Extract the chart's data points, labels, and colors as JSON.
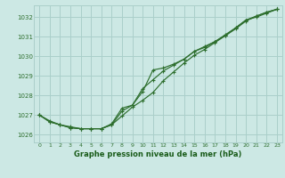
{
  "title": "Graphe pression niveau de la mer (hPa)",
  "bg_color": "#cce8e4",
  "grid_color": "#aacfca",
  "line_color": "#2d6e2d",
  "text_color": "#2d6e2d",
  "xlabel_color": "#1a5c1a",
  "ylim": [
    1025.6,
    1032.6
  ],
  "xlim": [
    -0.5,
    23.5
  ],
  "yticks": [
    1026,
    1027,
    1028,
    1029,
    1030,
    1031,
    1032
  ],
  "xticks": [
    0,
    1,
    2,
    3,
    4,
    5,
    6,
    7,
    8,
    9,
    10,
    11,
    12,
    13,
    14,
    15,
    16,
    17,
    18,
    19,
    20,
    21,
    22,
    23
  ],
  "series1": {
    "x": [
      0,
      1,
      2,
      3,
      4,
      5,
      6,
      7,
      8,
      9,
      10,
      11,
      12,
      13,
      14,
      15,
      16,
      17,
      18,
      19,
      20,
      21,
      22,
      23
    ],
    "y": [
      1027.0,
      1026.7,
      1026.5,
      1026.4,
      1026.3,
      1026.3,
      1026.3,
      1026.5,
      1027.2,
      1027.5,
      1028.2,
      1029.3,
      1029.4,
      1029.6,
      1029.85,
      1030.25,
      1030.5,
      1030.75,
      1031.1,
      1031.45,
      1031.85,
      1032.0,
      1032.2,
      1032.4
    ]
  },
  "series2": {
    "x": [
      0,
      1,
      2,
      3,
      4,
      5,
      6,
      7,
      8,
      9,
      10,
      11,
      12,
      13,
      14,
      15,
      16,
      17,
      18,
      19,
      20,
      21,
      22,
      23
    ],
    "y": [
      1027.0,
      1026.65,
      1026.5,
      1026.35,
      1026.3,
      1026.3,
      1026.3,
      1026.5,
      1026.95,
      1027.4,
      1027.75,
      1028.15,
      1028.75,
      1029.2,
      1029.65,
      1030.05,
      1030.35,
      1030.7,
      1031.05,
      1031.4,
      1031.8,
      1032.05,
      1032.25,
      1032.4
    ]
  },
  "series3": {
    "x": [
      0,
      1,
      2,
      3,
      4,
      5,
      6,
      7,
      8,
      9,
      10,
      11,
      12,
      13,
      14,
      15,
      16,
      17,
      18,
      19,
      20,
      21,
      22,
      23
    ],
    "y": [
      1027.0,
      1026.65,
      1026.5,
      1026.35,
      1026.3,
      1026.3,
      1026.3,
      1026.55,
      1027.35,
      1027.5,
      1028.35,
      1028.8,
      1029.25,
      1029.55,
      1029.85,
      1030.25,
      1030.45,
      1030.75,
      1031.05,
      1031.45,
      1031.85,
      1032.05,
      1032.25,
      1032.4
    ]
  }
}
